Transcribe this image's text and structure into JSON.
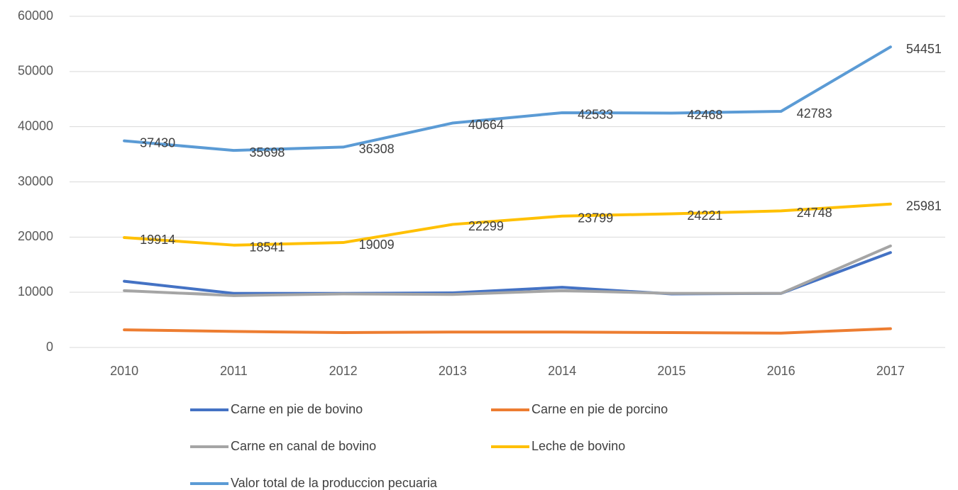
{
  "chart_data": {
    "type": "line",
    "categories": [
      "2010",
      "2011",
      "2012",
      "2013",
      "2014",
      "2015",
      "2016",
      "2017"
    ],
    "series": [
      {
        "name": "Carne en pie de bovino",
        "color": "#4472c4",
        "values": [
          12000,
          9800,
          9800,
          9900,
          10900,
          9700,
          9800,
          17200
        ]
      },
      {
        "name": "Carne en pie de porcino",
        "color": "#ed7d31",
        "values": [
          3200,
          2900,
          2700,
          2800,
          2800,
          2700,
          2600,
          3400
        ]
      },
      {
        "name": "Carne en canal de bovino",
        "color": "#a5a5a5",
        "values": [
          10300,
          9400,
          9700,
          9600,
          10300,
          9800,
          9800,
          18400
        ]
      },
      {
        "name": "Leche de bovino",
        "color": "#ffc000",
        "values": [
          19914,
          18541,
          19009,
          22299,
          23799,
          24221,
          24748,
          25981
        ],
        "data_labels": true
      },
      {
        "name": "Valor total de la produccion pecuaria",
        "color": "#5b9bd5",
        "values": [
          37430,
          35698,
          36308,
          40664,
          42533,
          42468,
          42783,
          54451
        ],
        "data_labels": true
      }
    ],
    "ylim": [
      0,
      60000
    ],
    "yticks": [
      0,
      10000,
      20000,
      30000,
      40000,
      50000,
      60000
    ],
    "grid": true,
    "legend": "bottom"
  }
}
